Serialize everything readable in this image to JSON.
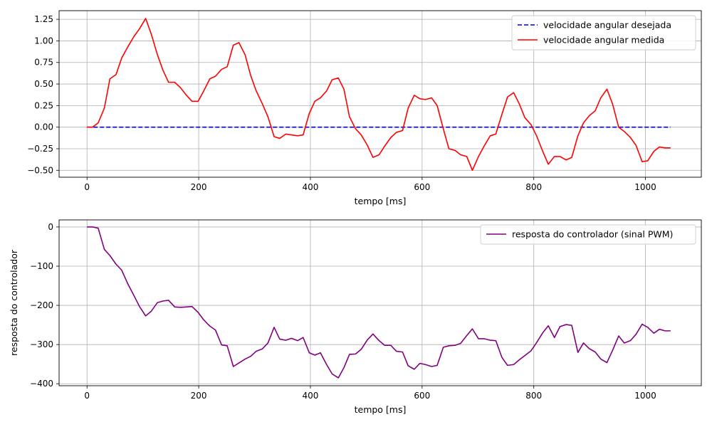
{
  "chart_data": [
    {
      "type": "line",
      "title": "",
      "xlabel": "tempo [ms]",
      "ylabel": "",
      "xlim": [
        -50,
        1100
      ],
      "ylim": [
        -0.58,
        1.35
      ],
      "xticks": [
        0,
        200,
        400,
        600,
        800,
        1000
      ],
      "yticks": [
        -0.5,
        -0.25,
        0.0,
        0.25,
        0.5,
        0.75,
        1.0,
        1.25
      ],
      "yticks_format": 2,
      "grid": true,
      "legend_position": "top-right",
      "series": [
        {
          "name": "velocidade angular desejada",
          "color": "#0000cc",
          "dashed": true,
          "x": [
            0,
            1045
          ],
          "y": [
            0,
            0
          ]
        },
        {
          "name": "velocidade angular medida",
          "color": "#ff0000",
          "dashed": false,
          "x": [
            0,
            10,
            20,
            31,
            41,
            52,
            62,
            73,
            84,
            94,
            105,
            115,
            126,
            136,
            146,
            157,
            167,
            178,
            188,
            199,
            209,
            220,
            230,
            241,
            251,
            262,
            272,
            283,
            293,
            303,
            314,
            324,
            335,
            345,
            356,
            366,
            377,
            387,
            398,
            408,
            418,
            429,
            439,
            450,
            460,
            470,
            481,
            491,
            502,
            512,
            523,
            533,
            544,
            554,
            565,
            575,
            586,
            596,
            606,
            617,
            627,
            638,
            648,
            659,
            669,
            680,
            690,
            701,
            711,
            722,
            732,
            743,
            753,
            764,
            774,
            784,
            795,
            805,
            816,
            826,
            837,
            847,
            858,
            868,
            879,
            889,
            899,
            910,
            920,
            931,
            941,
            952,
            962,
            973,
            983,
            994,
            1004,
            1015,
            1025,
            1035,
            1045
          ],
          "y": [
            0.0,
            0.0,
            0.05,
            0.22,
            0.56,
            0.61,
            0.8,
            0.93,
            1.05,
            1.14,
            1.26,
            1.08,
            0.84,
            0.66,
            0.52,
            0.52,
            0.46,
            0.37,
            0.3,
            0.3,
            0.42,
            0.56,
            0.59,
            0.67,
            0.7,
            0.95,
            0.98,
            0.84,
            0.6,
            0.42,
            0.27,
            0.12,
            -0.11,
            -0.13,
            -0.08,
            -0.09,
            -0.1,
            -0.09,
            0.16,
            0.3,
            0.34,
            0.42,
            0.55,
            0.57,
            0.44,
            0.12,
            -0.02,
            -0.09,
            -0.21,
            -0.35,
            -0.32,
            -0.22,
            -0.12,
            -0.06,
            -0.04,
            0.22,
            0.37,
            0.33,
            0.32,
            0.34,
            0.25,
            -0.02,
            -0.25,
            -0.27,
            -0.32,
            -0.34,
            -0.5,
            -0.34,
            -0.22,
            -0.1,
            -0.08,
            0.15,
            0.35,
            0.4,
            0.27,
            0.11,
            0.03,
            -0.1,
            -0.28,
            -0.43,
            -0.34,
            -0.34,
            -0.38,
            -0.35,
            -0.1,
            0.05,
            0.13,
            0.19,
            0.34,
            0.44,
            0.27,
            0.0,
            -0.05,
            -0.12,
            -0.21,
            -0.4,
            -0.39,
            -0.28,
            -0.23,
            -0.24,
            -0.24
          ]
        }
      ]
    },
    {
      "type": "line",
      "title": "",
      "xlabel": "tempo [ms]",
      "ylabel": "resposta do controlador",
      "xlim": [
        -50,
        1100
      ],
      "ylim": [
        -405,
        18
      ],
      "xticks": [
        0,
        200,
        400,
        600,
        800,
        1000
      ],
      "yticks": [
        -400,
        -300,
        -200,
        -100,
        0
      ],
      "yticks_format": 0,
      "grid": true,
      "legend_position": "top-right",
      "series": [
        {
          "name": "resposta do controlador (sinal PWM)",
          "color": "#800080",
          "dashed": false,
          "x": [
            0,
            10,
            20,
            31,
            41,
            52,
            62,
            73,
            84,
            94,
            105,
            115,
            126,
            136,
            146,
            157,
            167,
            178,
            188,
            199,
            209,
            220,
            230,
            241,
            251,
            262,
            272,
            283,
            293,
            303,
            314,
            324,
            335,
            345,
            356,
            366,
            377,
            387,
            398,
            408,
            418,
            429,
            439,
            450,
            460,
            470,
            481,
            491,
            502,
            512,
            523,
            533,
            544,
            554,
            565,
            575,
            586,
            596,
            606,
            617,
            627,
            638,
            648,
            659,
            669,
            680,
            690,
            701,
            711,
            722,
            732,
            743,
            753,
            764,
            774,
            784,
            795,
            805,
            816,
            826,
            837,
            847,
            858,
            868,
            879,
            889,
            899,
            910,
            920,
            931,
            941,
            952,
            962,
            973,
            983,
            994,
            1004,
            1015,
            1025,
            1035,
            1045
          ],
          "y": [
            0,
            0,
            -3,
            -57,
            -73,
            -95,
            -110,
            -145,
            -175,
            -203,
            -227,
            -215,
            -193,
            -189,
            -187,
            -204,
            -205,
            -204,
            -203,
            -218,
            -237,
            -253,
            -263,
            -301,
            -303,
            -356,
            -347,
            -337,
            -330,
            -317,
            -311,
            -296,
            -256,
            -286,
            -289,
            -284,
            -290,
            -282,
            -321,
            -327,
            -321,
            -351,
            -375,
            -385,
            -359,
            -325,
            -324,
            -312,
            -288,
            -273,
            -290,
            -302,
            -302,
            -317,
            -319,
            -354,
            -363,
            -348,
            -351,
            -356,
            -353,
            -307,
            -303,
            -302,
            -297,
            -277,
            -260,
            -285,
            -285,
            -289,
            -290,
            -333,
            -353,
            -351,
            -339,
            -328,
            -316,
            -295,
            -270,
            -252,
            -282,
            -254,
            -249,
            -251,
            -320,
            -296,
            -310,
            -319,
            -337,
            -346,
            -315,
            -278,
            -296,
            -290,
            -274,
            -248,
            -256,
            -271,
            -261,
            -265,
            -265
          ]
        }
      ]
    }
  ]
}
